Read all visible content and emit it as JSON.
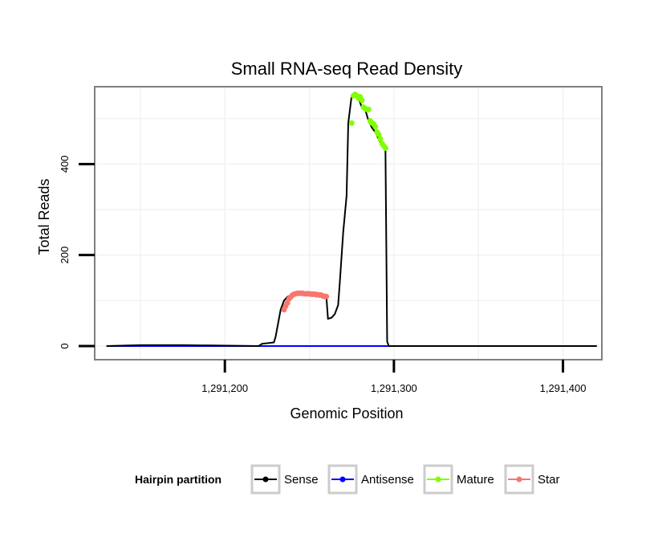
{
  "chart_data": {
    "type": "line",
    "title": "Small RNA-seq Read Density",
    "xlabel": "Genomic Position",
    "ylabel": "Total Reads",
    "xlim": [
      1291123,
      1291423
    ],
    "ylim": [
      -30,
      570
    ],
    "x_ticks": [
      1291200,
      1291300,
      1291400
    ],
    "x_tick_labels": [
      "1,291,200",
      "1,291,300",
      "1,291,400"
    ],
    "y_ticks": [
      0,
      200,
      400
    ],
    "y_tick_labels": [
      "0",
      "200",
      "400"
    ],
    "grid": true,
    "legend_position": "bottom",
    "legend_title": "Hairpin partition",
    "series": [
      {
        "name": "Sense",
        "color": "#000000",
        "markers": false,
        "x": [
          1291130,
          1291150,
          1291175,
          1291220,
          1291222,
          1291229,
          1291230,
          1291231,
          1291233,
          1291235,
          1291237,
          1291239,
          1291241,
          1291243,
          1291245,
          1291258,
          1291260,
          1291261,
          1291263,
          1291265,
          1291267,
          1291268,
          1291270,
          1291272,
          1291273,
          1291275,
          1291277,
          1291279,
          1291281,
          1291283,
          1291285,
          1291287,
          1291289,
          1291291,
          1291293,
          1291295,
          1291296,
          1291297,
          1291420
        ],
        "y": [
          0,
          2,
          2,
          0,
          5,
          8,
          20,
          40,
          80,
          100,
          108,
          112,
          115,
          116,
          116,
          110,
          110,
          60,
          62,
          70,
          90,
          140,
          250,
          330,
          490,
          550,
          552,
          545,
          525,
          520,
          495,
          480,
          470,
          455,
          440,
          430,
          10,
          0,
          0
        ]
      },
      {
        "name": "Antisense",
        "color": "#0000ff",
        "markers": false,
        "x": [
          1291130,
          1291420
        ],
        "y": [
          0,
          0
        ]
      },
      {
        "name": "Mature",
        "color": "#7fff00",
        "markers": true,
        "x": [
          1291275,
          1291276,
          1291277,
          1291278,
          1291279,
          1291280,
          1291281,
          1291282,
          1291283,
          1291284,
          1291285,
          1291286,
          1291287,
          1291288,
          1291289,
          1291290,
          1291291,
          1291292,
          1291293,
          1291294,
          1291295
        ],
        "y": [
          490,
          550,
          553,
          550,
          545,
          548,
          540,
          525,
          522,
          520,
          520,
          495,
          490,
          488,
          482,
          470,
          465,
          455,
          445,
          440,
          435
        ]
      },
      {
        "name": "Star",
        "color": "#f8766d",
        "markers": true,
        "x": [
          1291235,
          1291236,
          1291237,
          1291238,
          1291239,
          1291240,
          1291241,
          1291242,
          1291243,
          1291244,
          1291245,
          1291246,
          1291247,
          1291248,
          1291249,
          1291250,
          1291251,
          1291252,
          1291253,
          1291254,
          1291255,
          1291256,
          1291257,
          1291258,
          1291259,
          1291260
        ],
        "y": [
          80,
          88,
          95,
          104,
          108,
          112,
          114,
          115,
          116,
          116,
          116,
          116,
          115,
          115,
          115,
          115,
          114,
          114,
          114,
          113,
          113,
          112,
          112,
          110,
          109,
          109
        ]
      }
    ]
  }
}
